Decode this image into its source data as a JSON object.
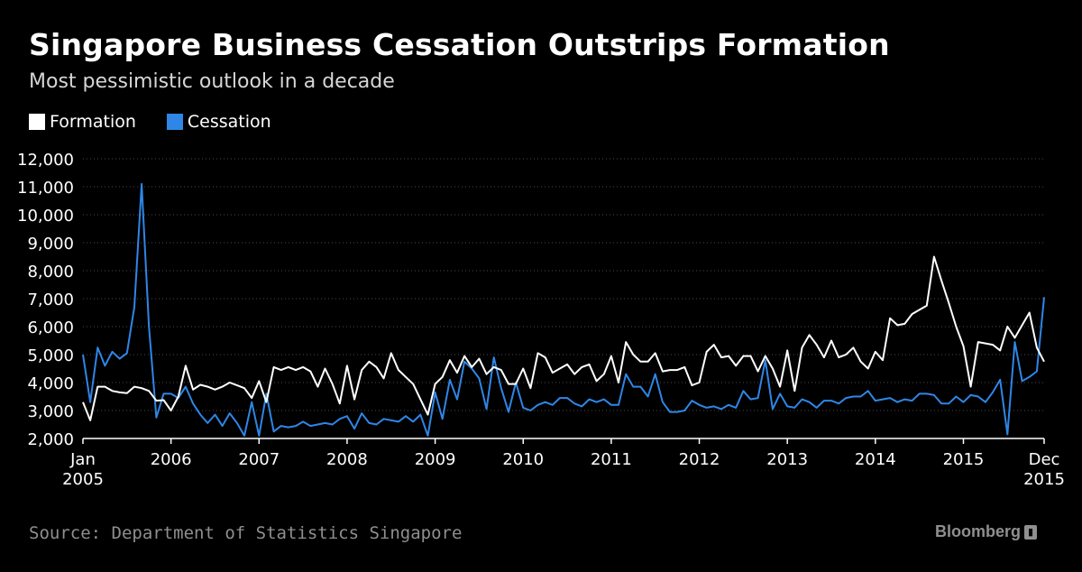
{
  "header": {
    "title": "Singapore Business Cessation Outstrips Formation",
    "subtitle": "Most pessimistic outlook in a decade"
  },
  "footer": {
    "source": "Source: Department of Statistics Singapore",
    "brand": "Bloomberg",
    "brand_icon": "bloomberg-terminal-icon"
  },
  "colors": {
    "background": "#000000",
    "formation": "#ffffff",
    "cessation": "#2f86e6",
    "grid": "#4a4a4a",
    "text": "#ffffff"
  },
  "chart_data": {
    "type": "line",
    "title": "Singapore Business Cessation Outstrips Formation",
    "subtitle": "Most pessimistic outlook in a decade",
    "x_unit": "month",
    "x_start": "2005-01",
    "x_end": "2015-12",
    "x_tick_labels": [
      {
        "date": "2005-01",
        "lines": [
          "Jan",
          "2005"
        ]
      },
      {
        "date": "2006-01",
        "lines": [
          "2006"
        ]
      },
      {
        "date": "2007-01",
        "lines": [
          "2007"
        ]
      },
      {
        "date": "2008-01",
        "lines": [
          "2008"
        ]
      },
      {
        "date": "2009-01",
        "lines": [
          "2009"
        ]
      },
      {
        "date": "2010-01",
        "lines": [
          "2010"
        ]
      },
      {
        "date": "2011-01",
        "lines": [
          "2011"
        ]
      },
      {
        "date": "2012-01",
        "lines": [
          "2012"
        ]
      },
      {
        "date": "2013-01",
        "lines": [
          "2013"
        ]
      },
      {
        "date": "2014-01",
        "lines": [
          "2014"
        ]
      },
      {
        "date": "2015-01",
        "lines": [
          "2015"
        ]
      },
      {
        "date": "2015-12",
        "lines": [
          "Dec",
          "2015"
        ]
      }
    ],
    "ylim": [
      2000,
      12000
    ],
    "y_ticks": [
      2000,
      3000,
      4000,
      5000,
      6000,
      7000,
      8000,
      9000,
      10000,
      11000,
      12000
    ],
    "y_tick_labels": [
      "2,000",
      "3,000",
      "4,000",
      "5,000",
      "6,000",
      "7,000",
      "8,000",
      "9,000",
      "10,000",
      "11,000",
      "12,000"
    ],
    "grid": true,
    "grid_style": "dotted horizontal",
    "legend_position": "top-left",
    "series": [
      {
        "name": "Formation",
        "color": "#ffffff",
        "values": [
          3300,
          2650,
          3850,
          3850,
          3700,
          3650,
          3620,
          3850,
          3800,
          3700,
          3350,
          3370,
          3000,
          3500,
          4600,
          3750,
          3920,
          3850,
          3750,
          3850,
          4000,
          3900,
          3800,
          3450,
          4050,
          3300,
          4550,
          4450,
          4550,
          4450,
          4550,
          4400,
          3850,
          4500,
          3950,
          3250,
          4600,
          3400,
          4450,
          4750,
          4550,
          4150,
          5050,
          4450,
          4200,
          3950,
          3400,
          2850,
          3950,
          4200,
          4800,
          4350,
          4950,
          4550,
          4850,
          4300,
          4550,
          4450,
          3950,
          3950,
          4500,
          3800,
          5050,
          4900,
          4350,
          4500,
          4650,
          4300,
          4550,
          4650,
          4050,
          4300,
          4950,
          4000,
          5450,
          5000,
          4750,
          4750,
          5050,
          4400,
          4450,
          4450,
          4550,
          3900,
          4000,
          5100,
          5350,
          4900,
          4950,
          4600,
          4950,
          4950,
          4400,
          4950,
          4500,
          3850,
          5150,
          3700,
          5250,
          5700,
          5350,
          4900,
          5500,
          4900,
          5000,
          5250,
          4750,
          4500,
          5100,
          4800,
          6300,
          6050,
          6100,
          6450,
          6600,
          6750,
          8500,
          7650,
          6850,
          6000,
          5300,
          3850,
          5450,
          5400,
          5350,
          5150,
          6000,
          5600,
          6050,
          6500,
          5250,
          4750
        ]
      },
      {
        "name": "Cessation",
        "color": "#2f86e6",
        "values": [
          5000,
          3300,
          5250,
          4600,
          5100,
          4850,
          5050,
          6700,
          11100,
          6000,
          2750,
          3600,
          3600,
          3450,
          3850,
          3250,
          2850,
          2550,
          2850,
          2450,
          2900,
          2550,
          2100,
          3300,
          2100,
          3600,
          2250,
          2450,
          2400,
          2450,
          2600,
          2450,
          2500,
          2550,
          2500,
          2700,
          2800,
          2350,
          2900,
          2550,
          2500,
          2700,
          2650,
          2600,
          2800,
          2600,
          2850,
          2100,
          3650,
          2700,
          4100,
          3400,
          4750,
          4500,
          4150,
          3050,
          4900,
          3800,
          2950,
          4000,
          3100,
          3000,
          3200,
          3300,
          3200,
          3450,
          3450,
          3250,
          3150,
          3400,
          3300,
          3400,
          3200,
          3200,
          4300,
          3850,
          3850,
          3500,
          4300,
          3300,
          2950,
          2950,
          3000,
          3350,
          3200,
          3100,
          3150,
          3050,
          3200,
          3100,
          3700,
          3400,
          3450,
          4800,
          3050,
          3600,
          3150,
          3100,
          3400,
          3300,
          3100,
          3350,
          3350,
          3250,
          3450,
          3500,
          3500,
          3700,
          3350,
          3400,
          3450,
          3300,
          3400,
          3350,
          3600,
          3600,
          3550,
          3250,
          3250,
          3500,
          3300,
          3550,
          3500,
          3300,
          3650,
          4100,
          2150,
          5450,
          4050,
          4200,
          4400,
          7050
        ]
      }
    ]
  }
}
